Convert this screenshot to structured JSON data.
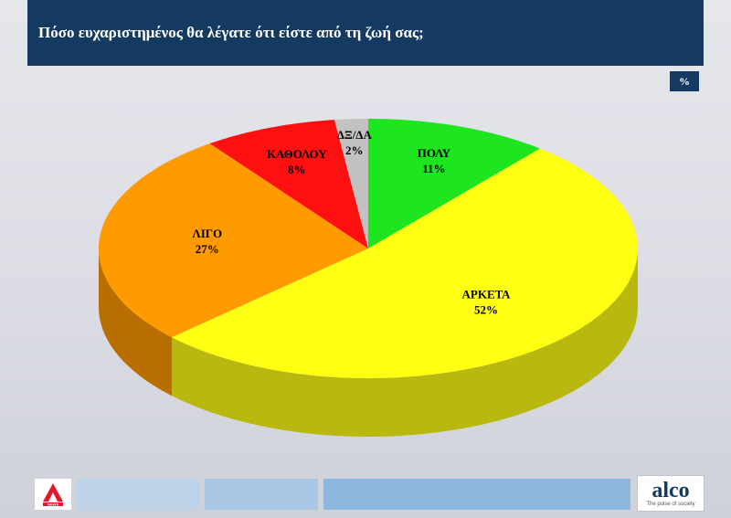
{
  "header": {
    "title": "Πόσο ευχαριστημένος θα λέγατε ότι είστε από τη ζωή σας;"
  },
  "unit_badge": "%",
  "chart_data": {
    "type": "pie",
    "title": "Πόσο ευχαριστημένος θα λέγατε ότι είστε από τη ζωή σας;",
    "unit": "%",
    "slices": [
      {
        "label": "ΠΟΛΥ",
        "value": 11,
        "display": "11%",
        "color": "#1ee61e"
      },
      {
        "label": "ΑΡΚΕΤΑ",
        "value": 52,
        "display": "52%",
        "color": "#ffff14"
      },
      {
        "label": "ΛΙΓΟ",
        "value": 27,
        "display": "27%",
        "color": "#ff9a00"
      },
      {
        "label": "ΚΑΘΟΛΟΥ",
        "value": 8,
        "display": "8%",
        "color": "#ff1010"
      },
      {
        "label": "ΔΞ/ΔΑ",
        "value": 2,
        "display": "2%",
        "color": "#c2c2c2"
      }
    ]
  },
  "footer": {
    "left_logo_text": "NEWS",
    "right_logo_name": "alco",
    "right_logo_tagline": "The pulse of society"
  }
}
